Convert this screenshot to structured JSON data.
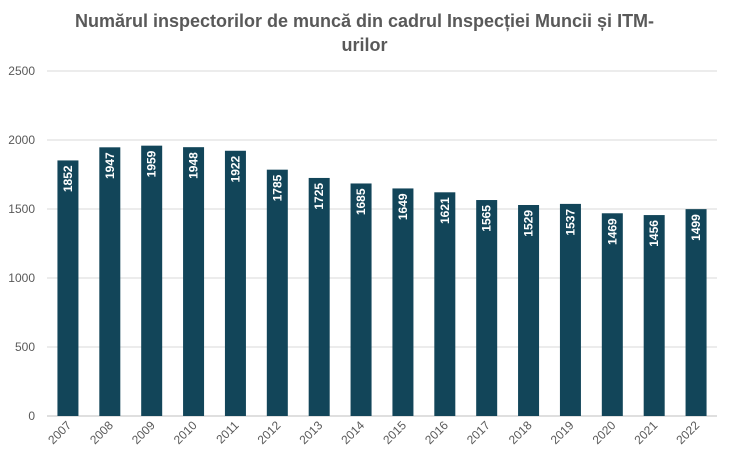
{
  "chart_data": {
    "type": "bar",
    "title_lines": [
      "Numărul inspectorilor de muncă din cadrul Inspecției Muncii și ITM-",
      "urilor"
    ],
    "categories": [
      "2007",
      "2008",
      "2009",
      "2010",
      "2011",
      "2012",
      "2013",
      "2014",
      "2015",
      "2016",
      "2017",
      "2018",
      "2019",
      "2020",
      "2021",
      "2022"
    ],
    "values": [
      1852,
      1947,
      1959,
      1948,
      1922,
      1785,
      1725,
      1685,
      1649,
      1621,
      1565,
      1529,
      1537,
      1469,
      1456,
      1499
    ],
    "ylim": [
      0,
      2500
    ],
    "yticks": [
      0,
      500,
      1000,
      1500,
      2000,
      2500
    ],
    "grid": true,
    "bar_color": "#124559",
    "data_labels": "inside-top-rotated"
  }
}
